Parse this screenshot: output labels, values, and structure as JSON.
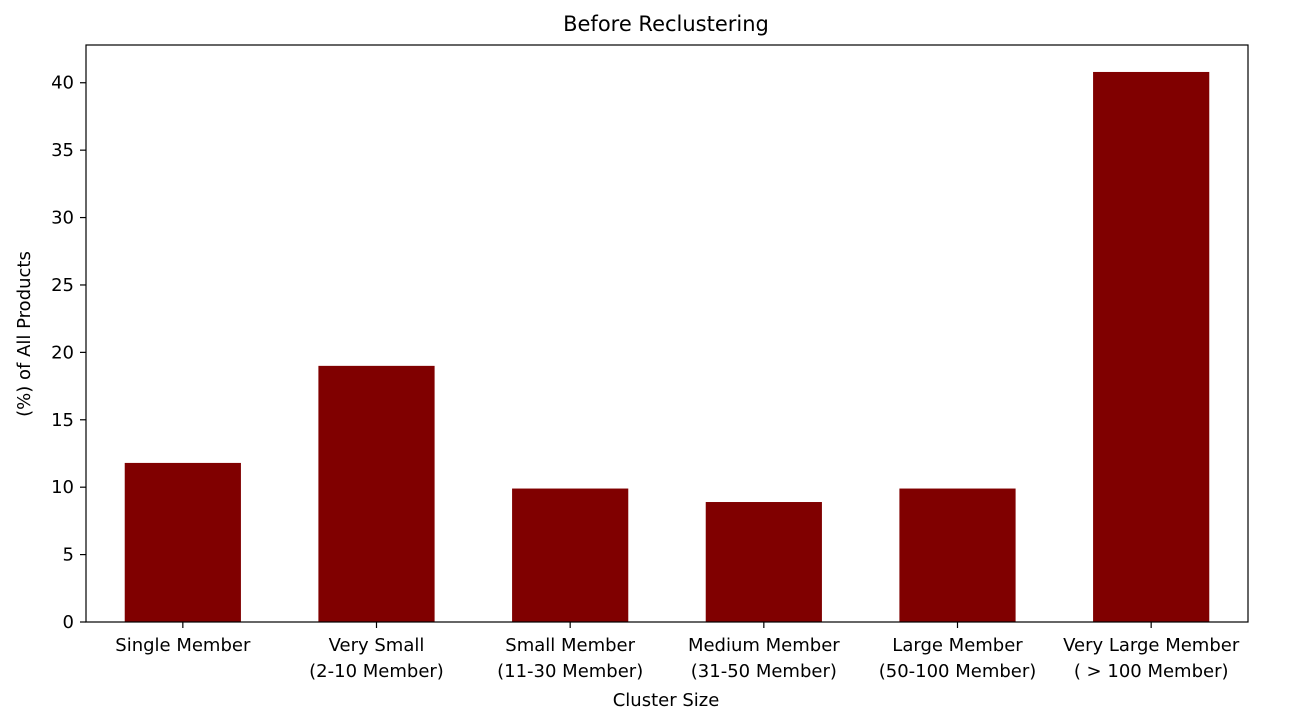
{
  "chart_data": {
    "type": "bar",
    "title": "Before Reclustering",
    "xlabel": "Cluster Size",
    "ylabel": "(%) of All Products",
    "categories": [
      [
        "Single Member"
      ],
      [
        "Very Small",
        "(2-10 Member)"
      ],
      [
        "Small Member",
        "(11-30 Member)"
      ],
      [
        "Medium Member",
        "(31-50 Member)"
      ],
      [
        "Large Member",
        "(50-100 Member)"
      ],
      [
        "Very Large Member",
        "( > 100 Member)"
      ]
    ],
    "values": [
      11.8,
      19.0,
      9.9,
      8.9,
      9.9,
      40.8
    ],
    "ylim": [
      0,
      42.8
    ],
    "yticks": [
      0,
      5,
      10,
      15,
      20,
      25,
      30,
      35,
      40
    ],
    "bar_color": "#800000",
    "grid": false,
    "legend": false
  }
}
